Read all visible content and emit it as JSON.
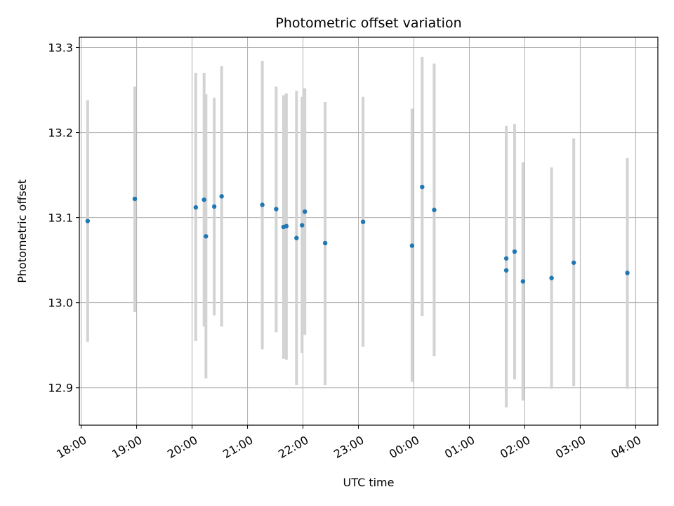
{
  "chart_data": {
    "type": "scatter",
    "title": "Photometric offset variation",
    "xlabel": "UTC time",
    "ylabel": "Photometric offset",
    "grid": true,
    "x_ticks": [
      {
        "t": "2000-01-01T18:00",
        "label": "18:00"
      },
      {
        "t": "2000-01-01T19:00",
        "label": "19:00"
      },
      {
        "t": "2000-01-01T20:00",
        "label": "20:00"
      },
      {
        "t": "2000-01-01T21:00",
        "label": "21:00"
      },
      {
        "t": "2000-01-01T22:00",
        "label": "22:00"
      },
      {
        "t": "2000-01-01T23:00",
        "label": "23:00"
      },
      {
        "t": "2000-01-02T00:00",
        "label": "00:00"
      },
      {
        "t": "2000-01-02T01:00",
        "label": "01:00"
      },
      {
        "t": "2000-01-02T02:00",
        "label": "02:00"
      },
      {
        "t": "2000-01-02T03:00",
        "label": "03:00"
      },
      {
        "t": "2000-01-02T04:00",
        "label": "04:00"
      }
    ],
    "y_ticks": [
      12.9,
      13.0,
      13.1,
      13.2,
      13.3
    ],
    "y_tick_labels": [
      "12.9",
      "13.0",
      "13.1",
      "13.2",
      "13.3"
    ],
    "xlim": [
      "2000-01-01T17:58",
      "2000-01-02T04:24"
    ],
    "ylim": [
      12.856,
      13.312
    ],
    "point_color": "#1f77b4",
    "errorbar_color": "#d3d3d3",
    "points": [
      {
        "t": "2000-01-01T18:07",
        "y": 13.096,
        "low": 12.954,
        "high": 13.238
      },
      {
        "t": "2000-01-01T18:58",
        "y": 13.122,
        "low": 12.989,
        "high": 13.254
      },
      {
        "t": "2000-01-01T20:04",
        "y": 13.112,
        "low": 12.955,
        "high": 13.27
      },
      {
        "t": "2000-01-01T20:13",
        "y": 13.121,
        "low": 12.972,
        "high": 13.27
      },
      {
        "t": "2000-01-01T20:15",
        "y": 13.078,
        "low": 12.911,
        "high": 13.245
      },
      {
        "t": "2000-01-01T20:24",
        "y": 13.113,
        "low": 12.985,
        "high": 13.241
      },
      {
        "t": "2000-01-01T20:32",
        "y": 13.125,
        "low": 12.972,
        "high": 13.278
      },
      {
        "t": "2000-01-01T21:16",
        "y": 13.115,
        "low": 12.945,
        "high": 13.284
      },
      {
        "t": "2000-01-01T21:31",
        "y": 13.11,
        "low": 12.965,
        "high": 13.254
      },
      {
        "t": "2000-01-01T21:39",
        "y": 13.089,
        "low": 12.934,
        "high": 13.244
      },
      {
        "t": "2000-01-01T21:42",
        "y": 13.09,
        "low": 12.933,
        "high": 13.246
      },
      {
        "t": "2000-01-01T21:53",
        "y": 13.076,
        "low": 12.903,
        "high": 13.249
      },
      {
        "t": "2000-01-01T21:59",
        "y": 13.091,
        "low": 12.941,
        "high": 13.242
      },
      {
        "t": "2000-01-01T22:02",
        "y": 13.107,
        "low": 12.962,
        "high": 13.252
      },
      {
        "t": "2000-01-01T22:24",
        "y": 13.07,
        "low": 12.903,
        "high": 13.236
      },
      {
        "t": "2000-01-01T23:05",
        "y": 13.095,
        "low": 12.948,
        "high": 13.242
      },
      {
        "t": "2000-01-01T23:58",
        "y": 13.067,
        "low": 12.907,
        "high": 13.228
      },
      {
        "t": "2000-01-02T00:09",
        "y": 13.136,
        "low": 12.984,
        "high": 13.289
      },
      {
        "t": "2000-01-02T00:22",
        "y": 13.109,
        "low": 12.937,
        "high": 13.281
      },
      {
        "t": "2000-01-02T01:40",
        "y": 13.052,
        "low": 12.895,
        "high": 13.208
      },
      {
        "t": "2000-01-02T01:40",
        "y": 13.038,
        "low": 12.877,
        "high": 13.198
      },
      {
        "t": "2000-01-02T01:49",
        "y": 13.06,
        "low": 12.91,
        "high": 13.21
      },
      {
        "t": "2000-01-02T01:58",
        "y": 13.025,
        "low": 12.885,
        "high": 13.165
      },
      {
        "t": "2000-01-02T02:29",
        "y": 13.029,
        "low": 12.899,
        "high": 13.159
      },
      {
        "t": "2000-01-02T02:53",
        "y": 13.047,
        "low": 12.902,
        "high": 13.193
      },
      {
        "t": "2000-01-02T03:51",
        "y": 13.035,
        "low": 12.899,
        "high": 13.17
      }
    ]
  }
}
